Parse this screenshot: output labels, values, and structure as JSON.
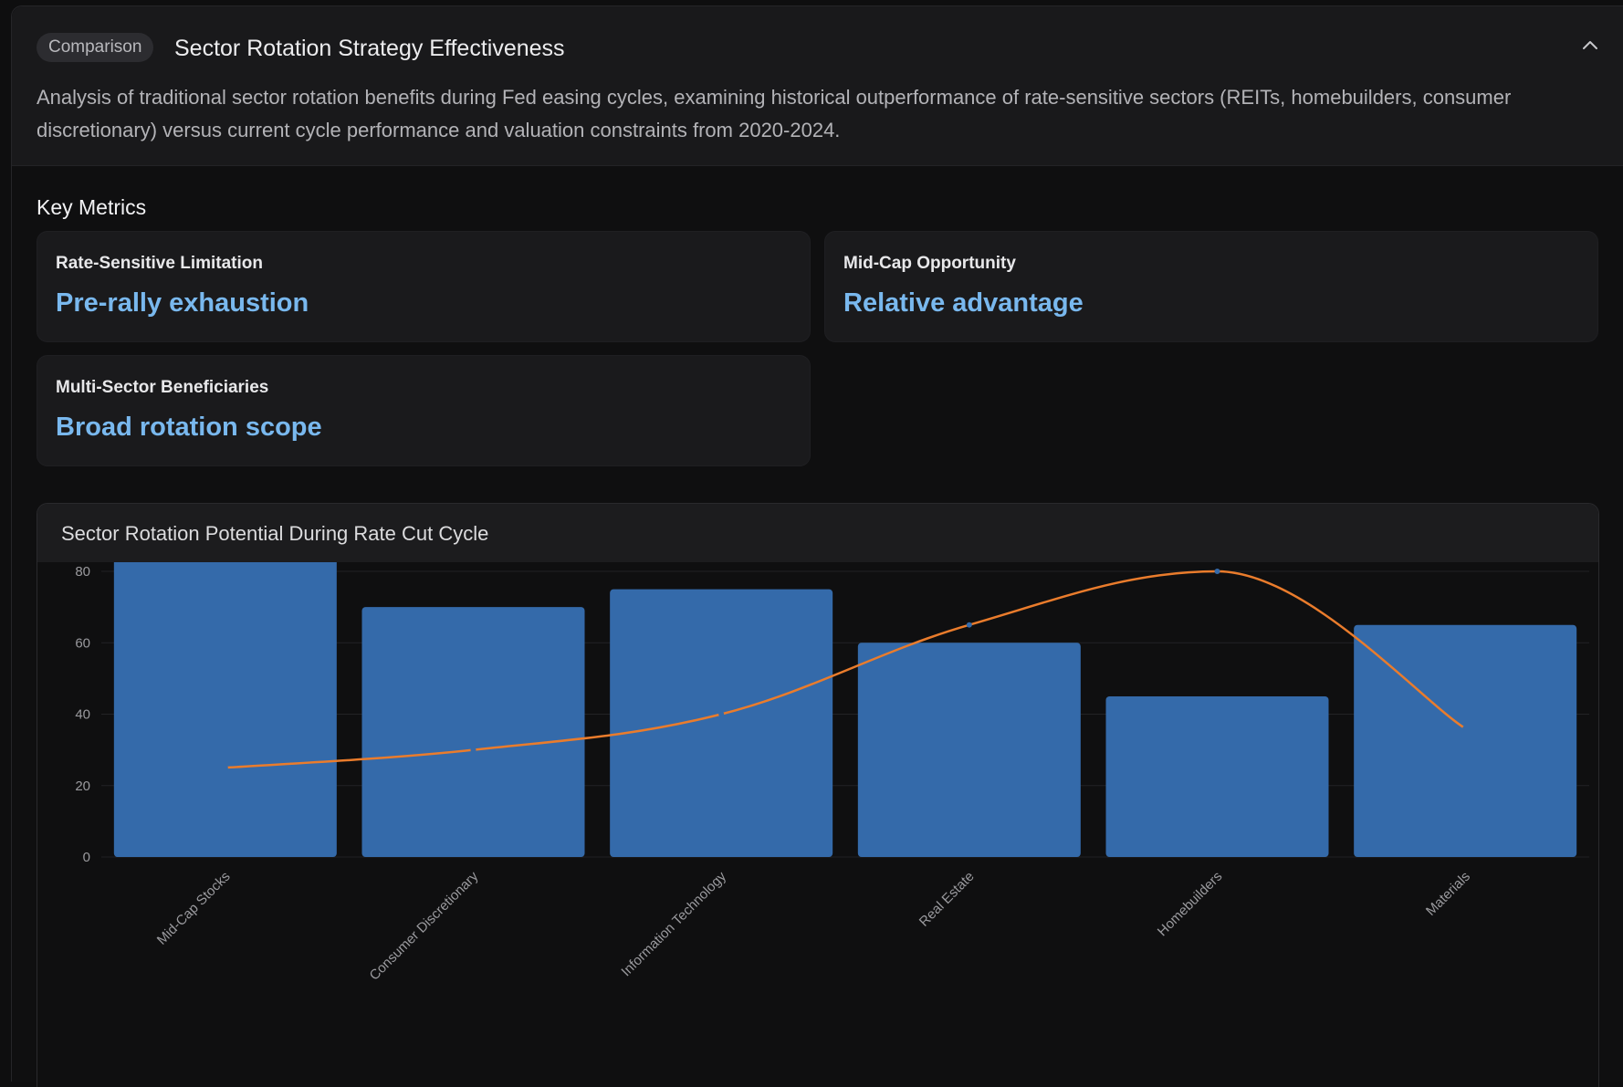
{
  "header": {
    "badge": "Comparison",
    "title": "Sector Rotation Strategy Effectiveness",
    "description": "Analysis of traditional sector rotation benefits during Fed easing cycles, examining historical outperformance of rate-sensitive sectors (REITs, homebuilders, consumer discretionary) versus current cycle performance and valuation constraints from 2020-2024."
  },
  "metrics_section": {
    "title": "Key Metrics",
    "items": [
      {
        "label": "Rate-Sensitive Limitation",
        "value": "Pre-rally exhaustion"
      },
      {
        "label": "Mid-Cap Opportunity",
        "value": "Relative advantage"
      },
      {
        "label": "Multi-Sector Beneficiaries",
        "value": "Broad rotation scope"
      }
    ]
  },
  "chart_data": {
    "type": "bar",
    "title": "Sector Rotation Potential During Rate Cut Cycle",
    "categories": [
      "Mid-Cap Stocks",
      "Consumer Discretionary",
      "Information Technology",
      "Real Estate",
      "Homebuilders",
      "Materials"
    ],
    "series": [
      {
        "type": "bar",
        "values": [
          85,
          70,
          75,
          60,
          45,
          65
        ],
        "color": "#346aaa"
      },
      {
        "type": "line",
        "values": [
          25,
          30,
          40,
          65,
          80,
          36
        ],
        "color": "#ea7c2c"
      }
    ],
    "ylim": [
      0,
      80
    ],
    "yticks": [
      0,
      20,
      40,
      60,
      80
    ],
    "grid": true,
    "xlabel": "",
    "ylabel": ""
  },
  "colors": {
    "accent": "#79b8ee",
    "bar": "#346aaa",
    "line": "#ea7c2c"
  },
  "icons": {
    "collapse": "chevron-up-icon"
  }
}
